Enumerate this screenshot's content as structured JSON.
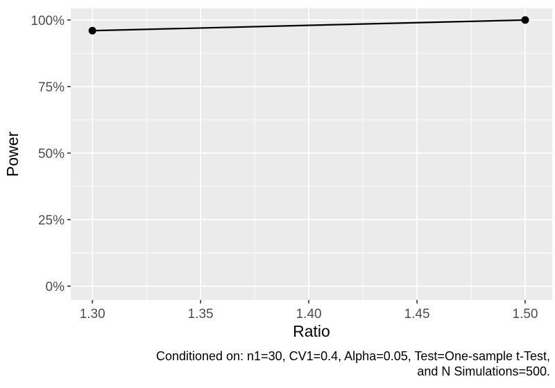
{
  "chart_data": {
    "type": "line",
    "title": "",
    "xlabel": "Ratio",
    "ylabel": "Power",
    "series": [
      {
        "name": "power",
        "x": [
          1.3,
          1.5
        ],
        "y_percent": [
          96,
          100
        ]
      }
    ],
    "x_ticks": [
      1.3,
      1.35,
      1.4,
      1.45,
      1.5
    ],
    "x_tick_labels": [
      "1.30",
      "1.35",
      "1.40",
      "1.45",
      "1.50"
    ],
    "y_ticks": [
      0,
      25,
      50,
      75,
      100
    ],
    "y_tick_labels": [
      "0%",
      "25%",
      "50%",
      "75%",
      "100%"
    ],
    "xlim": [
      1.29,
      1.5125
    ],
    "ylim": [
      -5.2,
      104.4
    ],
    "grid": "major-and-minor",
    "legend": "none",
    "caption": {
      "line1": "Conditioned on: n1=30, CV1=0.4, Alpha=0.05, Test=One-sample t-Test,",
      "line2": "and N Simulations=500."
    },
    "style": {
      "panel_bg": "#EBEBEB",
      "grid_major_color": "#FFFFFF",
      "grid_minor_color": "#FFFFFF",
      "tick_mark_color": "#333333",
      "tick_label_color": "#4D4D4D",
      "axis_title_color": "#000000",
      "caption_color": "#000000",
      "line_color": "#000000",
      "point_color": "#000000"
    }
  }
}
